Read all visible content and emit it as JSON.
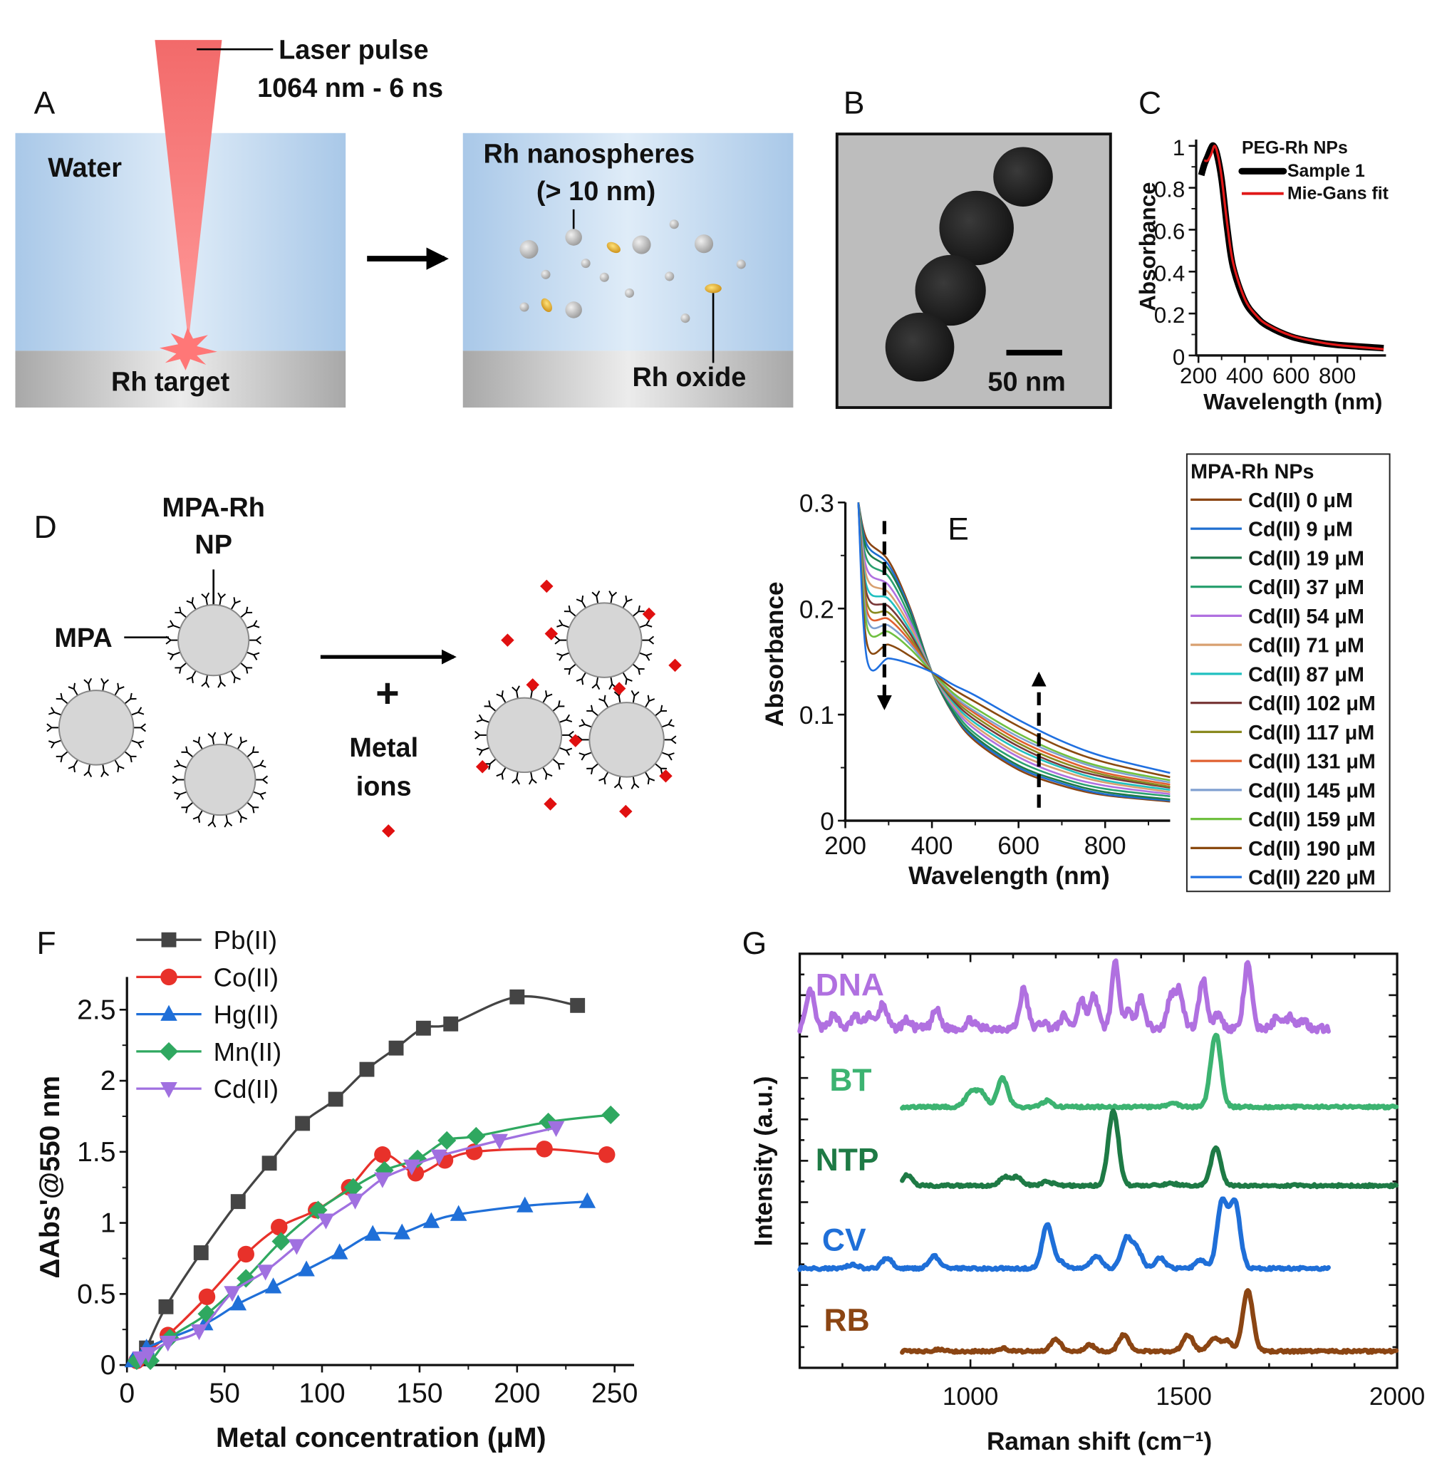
{
  "figure": {
    "panel_labels": {
      "a": "A",
      "b": "B",
      "c": "C",
      "d": "D",
      "e": "E",
      "f": "F",
      "g": "G"
    },
    "panel_a": {
      "laser_label": "Laser pulse",
      "laser_params": "1064 nm - 6 ns",
      "water": "Water",
      "target": "Rh target",
      "nanospheres": "Rh nanospheres",
      "size": "(> 10 nm)",
      "oxide": "Rh oxide",
      "colors": {
        "laser": "#f26a6a",
        "water": "#b7d3ee",
        "oxide": "#e0a820"
      }
    },
    "panel_b": {
      "scale_bar": "50 nm"
    },
    "panel_d": {
      "np_label_1": "MPA-Rh",
      "np_label_2": "NP",
      "mpa": "MPA",
      "plus": "+",
      "ions_1": "Metal",
      "ions_2": "ions",
      "colors": {
        "ion": "#e01010",
        "particle": "#d6d6d6"
      }
    }
  },
  "chart_data": [
    {
      "panel": "C",
      "type": "line",
      "xlabel": "Wavelength (nm)",
      "ylabel": "Absorbance",
      "xlim": [
        190,
        1010
      ],
      "ylim": [
        0,
        1.03
      ],
      "xticks": [
        200,
        400,
        600,
        800
      ],
      "yticks": [
        0,
        0.2,
        0.4,
        0.6,
        0.8,
        1
      ],
      "ytick_labels": [
        "0",
        "0.2",
        "0.4",
        "0.6",
        "0.8",
        "1"
      ],
      "legend_title": "PEG-Rh NPs",
      "legend_position": "top-right",
      "series": [
        {
          "name": "Sample 1",
          "color": "#000000",
          "x": [
            212,
            225,
            240,
            255,
            265,
            280,
            300,
            325,
            350,
            400,
            450,
            500,
            600,
            700,
            800,
            1000
          ],
          "y": [
            0.86,
            0.91,
            0.95,
            0.99,
            1.0,
            0.96,
            0.84,
            0.6,
            0.42,
            0.26,
            0.185,
            0.14,
            0.09,
            0.065,
            0.05,
            0.035
          ]
        },
        {
          "name": "Mie-Gans fit",
          "color": "#e01818",
          "x": [
            225,
            240,
            255,
            270,
            285,
            300,
            325,
            350,
            400,
            450,
            500,
            600,
            700,
            800,
            1000
          ],
          "y": [
            0.93,
            0.93,
            0.96,
            1.0,
            0.95,
            0.85,
            0.62,
            0.44,
            0.27,
            0.19,
            0.145,
            0.095,
            0.068,
            0.05,
            0.03
          ]
        }
      ]
    },
    {
      "panel": "E",
      "type": "line",
      "xlabel": "Wavelength (nm)",
      "ylabel": "Absorbance",
      "xlim": [
        200,
        950
      ],
      "ylim": [
        0,
        0.3
      ],
      "xticks": [
        200,
        400,
        600,
        800
      ],
      "yticks": [
        0,
        0.1,
        0.2,
        0.3
      ],
      "ytick_labels": [
        "0",
        "0.1",
        "0.2",
        "0.3"
      ],
      "legend_title": "MPA-Rh NPs",
      "legend_position": "right",
      "x": [
        230,
        250,
        300,
        350,
        400,
        450,
        500,
        600,
        700,
        800,
        950
      ],
      "series": [
        {
          "name": "Cd(II) 0 μM",
          "color": "#8b4513",
          "values": [
            0.3,
            0.265,
            0.245,
            0.2,
            0.14,
            0.1,
            0.075,
            0.048,
            0.033,
            0.024,
            0.018
          ]
        },
        {
          "name": "Cd(II) 9 μM",
          "color": "#1f6fd0",
          "values": [
            0.3,
            0.26,
            0.241,
            0.198,
            0.14,
            0.101,
            0.077,
            0.05,
            0.035,
            0.025,
            0.019
          ]
        },
        {
          "name": "Cd(II) 19 μM",
          "color": "#1e7a4a",
          "values": [
            0.3,
            0.255,
            0.237,
            0.196,
            0.14,
            0.102,
            0.079,
            0.052,
            0.037,
            0.027,
            0.02
          ]
        },
        {
          "name": "Cd(II) 37 μM",
          "color": "#2aa070",
          "values": [
            0.3,
            0.246,
            0.23,
            0.191,
            0.14,
            0.105,
            0.082,
            0.056,
            0.04,
            0.03,
            0.023
          ]
        },
        {
          "name": "Cd(II) 54 μM",
          "color": "#b070e0",
          "values": [
            0.3,
            0.237,
            0.222,
            0.187,
            0.14,
            0.107,
            0.086,
            0.06,
            0.043,
            0.033,
            0.025
          ]
        },
        {
          "name": "Cd(II) 71 μM",
          "color": "#d8a070",
          "values": [
            0.3,
            0.229,
            0.215,
            0.183,
            0.14,
            0.109,
            0.089,
            0.063,
            0.047,
            0.036,
            0.027
          ]
        },
        {
          "name": "Cd(II) 87 μM",
          "color": "#20c0c0",
          "values": [
            0.3,
            0.22,
            0.209,
            0.179,
            0.14,
            0.111,
            0.092,
            0.067,
            0.05,
            0.038,
            0.029
          ]
        },
        {
          "name": "Cd(II) 102 μM",
          "color": "#7a3a3a",
          "values": [
            0.3,
            0.213,
            0.202,
            0.176,
            0.14,
            0.113,
            0.095,
            0.07,
            0.052,
            0.041,
            0.031
          ]
        },
        {
          "name": "Cd(II) 117 μM",
          "color": "#8a8a20",
          "values": [
            0.3,
            0.205,
            0.196,
            0.172,
            0.14,
            0.115,
            0.098,
            0.073,
            0.055,
            0.043,
            0.032
          ]
        },
        {
          "name": "Cd(II) 131 μM",
          "color": "#e06030",
          "values": [
            0.3,
            0.198,
            0.19,
            0.169,
            0.14,
            0.117,
            0.101,
            0.076,
            0.058,
            0.045,
            0.034
          ]
        },
        {
          "name": "Cd(II) 145 μM",
          "color": "#80a0d0",
          "values": [
            0.3,
            0.191,
            0.184,
            0.166,
            0.14,
            0.118,
            0.103,
            0.079,
            0.061,
            0.048,
            0.036
          ]
        },
        {
          "name": "Cd(II) 159 μM",
          "color": "#70c040",
          "values": [
            0.3,
            0.183,
            0.178,
            0.162,
            0.14,
            0.12,
            0.106,
            0.082,
            0.063,
            0.05,
            0.038
          ]
        },
        {
          "name": "Cd(II) 190 μM",
          "color": "#8a4a10",
          "values": [
            0.3,
            0.167,
            0.166,
            0.155,
            0.14,
            0.124,
            0.112,
            0.089,
            0.069,
            0.055,
            0.041
          ]
        },
        {
          "name": "Cd(II) 220 μM",
          "color": "#2070e0",
          "values": [
            0.3,
            0.152,
            0.153,
            0.148,
            0.14,
            0.128,
            0.118,
            0.095,
            0.075,
            0.06,
            0.045
          ]
        }
      ]
    },
    {
      "panel": "F",
      "type": "line",
      "xlabel": "Metal concentration (μM)",
      "ylabel": "ΔAbs'@550 nm",
      "xlim": [
        0,
        260
      ],
      "ylim": [
        0,
        2.73
      ],
      "xticks": [
        0,
        50,
        100,
        150,
        200,
        250
      ],
      "yticks": [
        0,
        0.5,
        1,
        1.5,
        2,
        2.5
      ],
      "ytick_labels": [
        "0",
        "0.5",
        "1",
        "1.5",
        "2",
        "2.5"
      ],
      "legend_position": "top-left",
      "series": [
        {
          "name": "Pb(II)",
          "color": "#444444",
          "marker": "square",
          "x": [
            10,
            20,
            38,
            57,
            73,
            90,
            107,
            123,
            138,
            152,
            166,
            200,
            231
          ],
          "y": [
            0.12,
            0.41,
            0.79,
            1.15,
            1.42,
            1.7,
            1.87,
            2.08,
            2.23,
            2.37,
            2.4,
            2.59,
            2.53
          ]
        },
        {
          "name": "Co(II)",
          "color": "#e8312a",
          "marker": "circle",
          "x": [
            5,
            21,
            41,
            61,
            78,
            97,
            114,
            131,
            148,
            163,
            178,
            214,
            246
          ],
          "y": [
            0.03,
            0.21,
            0.48,
            0.78,
            0.97,
            1.09,
            1.25,
            1.48,
            1.35,
            1.44,
            1.5,
            1.52,
            1.48
          ]
        },
        {
          "name": "Hg(II)",
          "color": "#1f6fd8",
          "marker": "triangle-up",
          "x": [
            3,
            10,
            40,
            57,
            75,
            92,
            109,
            126,
            141,
            156,
            170,
            204,
            236
          ],
          "y": [
            0.03,
            0.12,
            0.29,
            0.43,
            0.55,
            0.67,
            0.79,
            0.92,
            0.93,
            1.01,
            1.06,
            1.12,
            1.15
          ]
        },
        {
          "name": "Mn(II)",
          "color": "#2fa860",
          "marker": "diamond",
          "x": [
            5,
            12,
            22,
            41,
            61,
            79,
            98,
            116,
            132,
            149,
            164,
            179,
            216,
            248
          ],
          "y": [
            0.03,
            0.03,
            0.19,
            0.36,
            0.61,
            0.87,
            1.09,
            1.25,
            1.37,
            1.45,
            1.58,
            1.61,
            1.71,
            1.76
          ]
        },
        {
          "name": "Cd(II)",
          "color": "#a070e0",
          "marker": "triangle-down",
          "x": [
            7,
            11,
            21,
            37,
            54,
            71,
            87,
            102,
            117,
            131,
            146,
            160,
            191,
            220
          ],
          "y": [
            0.05,
            0.08,
            0.16,
            0.24,
            0.51,
            0.66,
            0.84,
            1.02,
            1.16,
            1.31,
            1.4,
            1.47,
            1.58,
            1.67
          ]
        }
      ]
    },
    {
      "panel": "G",
      "type": "line",
      "xlabel": "Raman shift (cm⁻¹)",
      "ylabel": "Intensity (a.u.)",
      "xlim": [
        600,
        2000
      ],
      "ylim": [
        0,
        10
      ],
      "xticks": [
        1000,
        1500,
        2000
      ],
      "y_tick_labels_shown": false,
      "series": [
        {
          "name": "DNA",
          "color": "#b070e0",
          "range": [
            600,
            1840
          ],
          "baseline": 8.2,
          "peaks": [
            [
              625,
              0.9
            ],
            [
              680,
              0.35
            ],
            [
              730,
              0.3
            ],
            [
              762,
              0.35
            ],
            [
              795,
              0.6
            ],
            [
              850,
              0.2
            ],
            [
              920,
              0.45
            ],
            [
              1000,
              0.2
            ],
            [
              1125,
              0.95
            ],
            [
              1170,
              0.15
            ],
            [
              1220,
              0.3
            ],
            [
              1260,
              0.7
            ],
            [
              1290,
              0.8
            ],
            [
              1340,
              1.55
            ],
            [
              1370,
              0.4
            ],
            [
              1400,
              0.75
            ],
            [
              1470,
              0.75
            ],
            [
              1490,
              0.9
            ],
            [
              1545,
              1.2
            ],
            [
              1580,
              0.35
            ],
            [
              1650,
              1.55
            ],
            [
              1720,
              0.3
            ],
            [
              1750,
              0.3
            ],
            [
              1780,
              0.2
            ]
          ]
        },
        {
          "name": "BT",
          "color": "#3cb371",
          "range": [
            840,
            2000
          ],
          "baseline": 6.3,
          "peaks": [
            [
              1000,
              0.35
            ],
            [
              1025,
              0.35
            ],
            [
              1075,
              0.7
            ],
            [
              1180,
              0.15
            ],
            [
              1475,
              0.1
            ],
            [
              1575,
              1.75
            ]
          ]
        },
        {
          "name": "NTP",
          "color": "#1e7a45",
          "range": [
            840,
            2000
          ],
          "baseline": 4.4,
          "peaks": [
            [
              852,
              0.25
            ],
            [
              1080,
              0.2
            ],
            [
              1110,
              0.2
            ],
            [
              1180,
              0.1
            ],
            [
              1335,
              1.8
            ],
            [
              1470,
              0.06
            ],
            [
              1575,
              0.9
            ]
          ]
        },
        {
          "name": "CV",
          "color": "#1f6fd8",
          "range": [
            600,
            1840
          ],
          "baseline": 2.4,
          "peaks": [
            [
              725,
              0.1
            ],
            [
              805,
              0.25
            ],
            [
              915,
              0.3
            ],
            [
              1180,
              1.05
            ],
            [
              1210,
              0.15
            ],
            [
              1295,
              0.3
            ],
            [
              1365,
              0.7
            ],
            [
              1390,
              0.45
            ],
            [
              1445,
              0.25
            ],
            [
              1540,
              0.2
            ],
            [
              1590,
              1.6
            ],
            [
              1620,
              1.6
            ]
          ]
        },
        {
          "name": "RB",
          "color": "#8b4513",
          "range": [
            840,
            2000
          ],
          "baseline": 0.4,
          "peaks": [
            [
              930,
              0.05
            ],
            [
              1075,
              0.07
            ],
            [
              1200,
              0.3
            ],
            [
              1280,
              0.15
            ],
            [
              1360,
              0.4
            ],
            [
              1510,
              0.4
            ],
            [
              1570,
              0.3
            ],
            [
              1600,
              0.25
            ],
            [
              1650,
              1.45
            ]
          ]
        }
      ]
    }
  ]
}
